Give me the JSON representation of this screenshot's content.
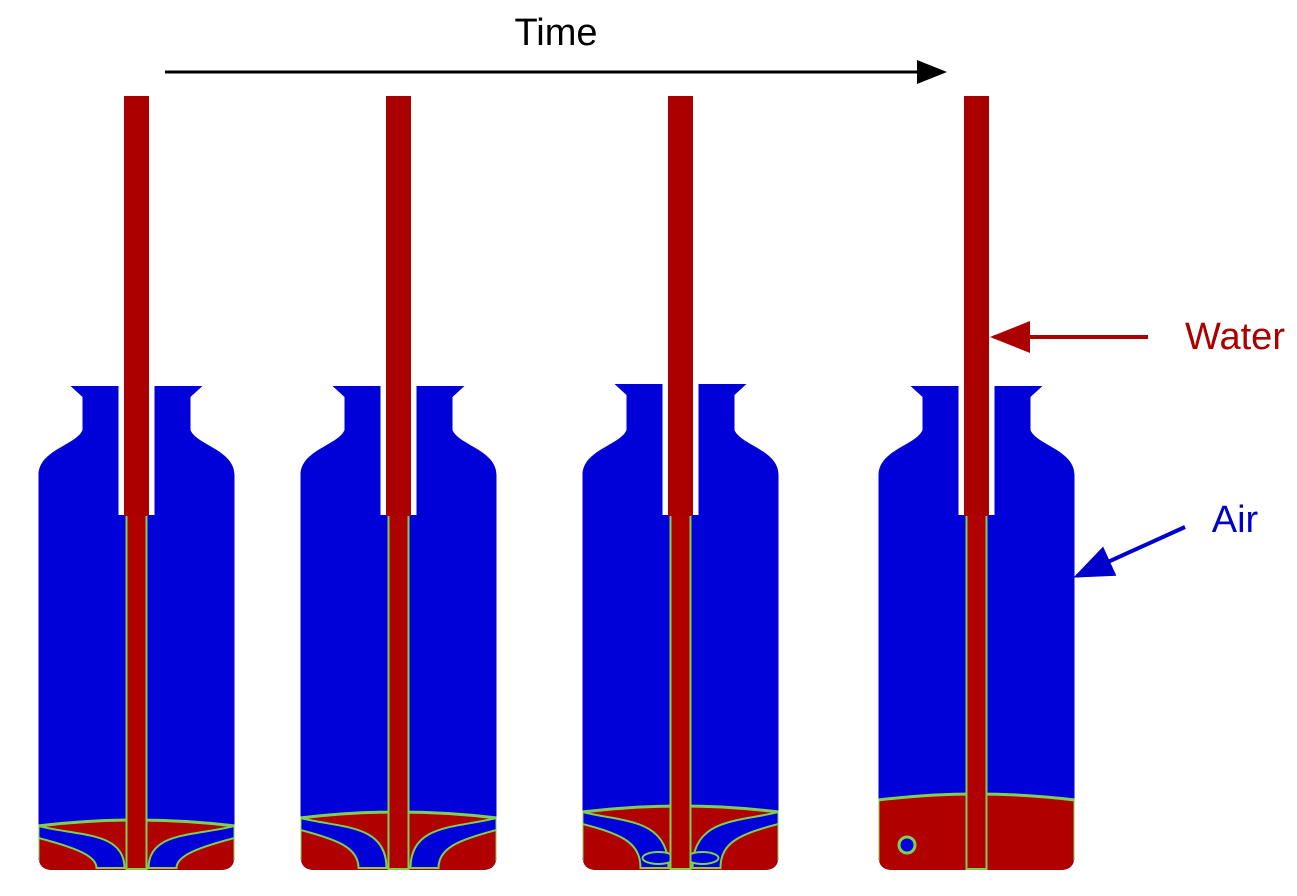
{
  "header": {
    "title": "Time"
  },
  "labels": {
    "water": "Water",
    "air": "Air"
  }
}
